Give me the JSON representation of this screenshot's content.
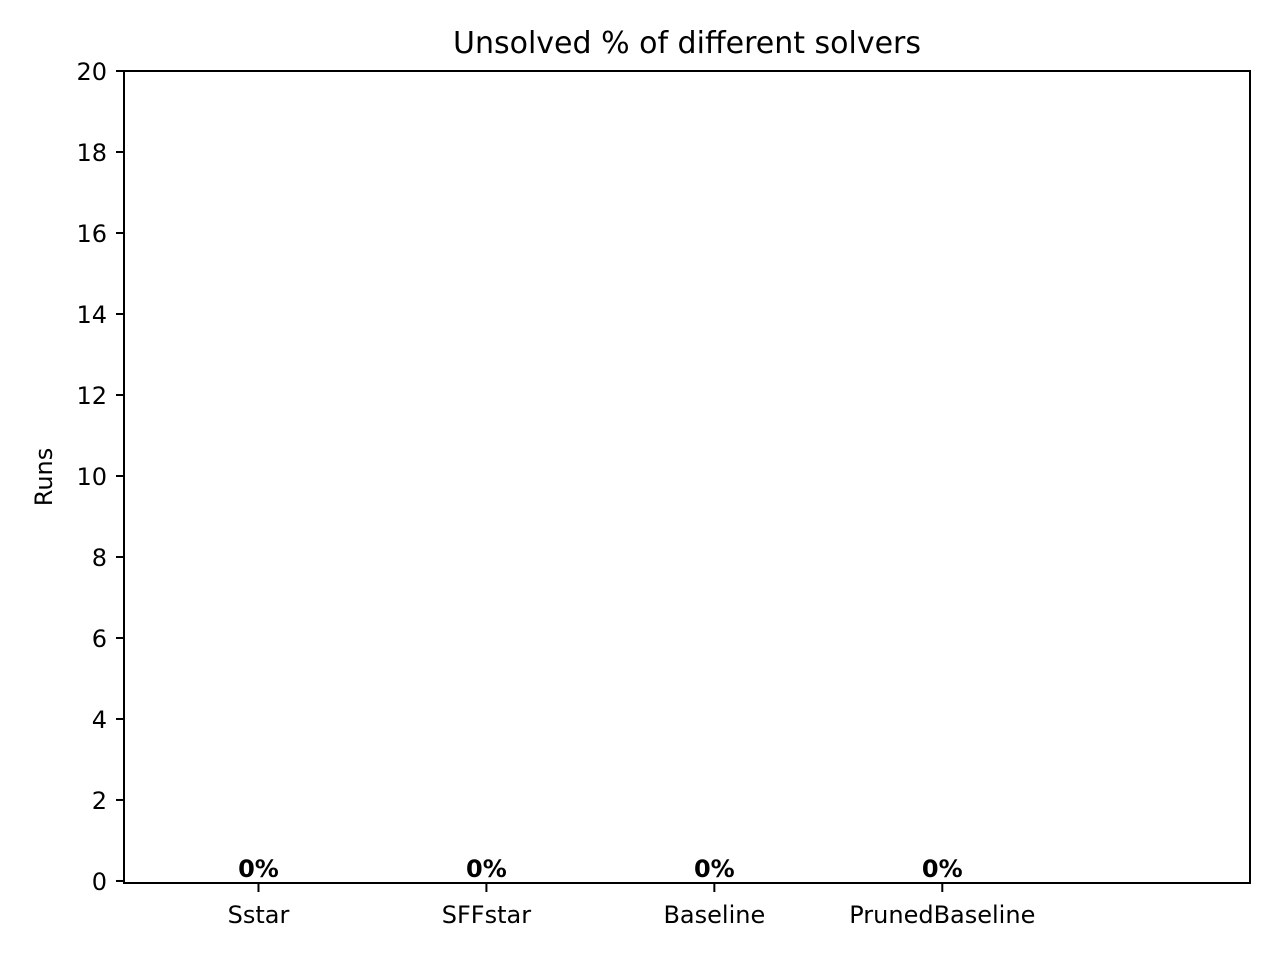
{
  "chart_data": {
    "type": "bar",
    "title": "Unsolved % of different solvers",
    "xlabel": "",
    "ylabel": "Runs",
    "categories": [
      "Sstar",
      "SFFstar",
      "Baseline",
      "PrunedBaseline"
    ],
    "values": [
      0,
      0,
      0,
      0
    ],
    "data_labels": [
      "0%",
      "0%",
      "0%",
      "0%"
    ],
    "ylim": [
      0,
      20
    ],
    "yticks": [
      0,
      2,
      4,
      6,
      8,
      10,
      12,
      14,
      16,
      18,
      20
    ],
    "grid": false,
    "legend": "none"
  }
}
